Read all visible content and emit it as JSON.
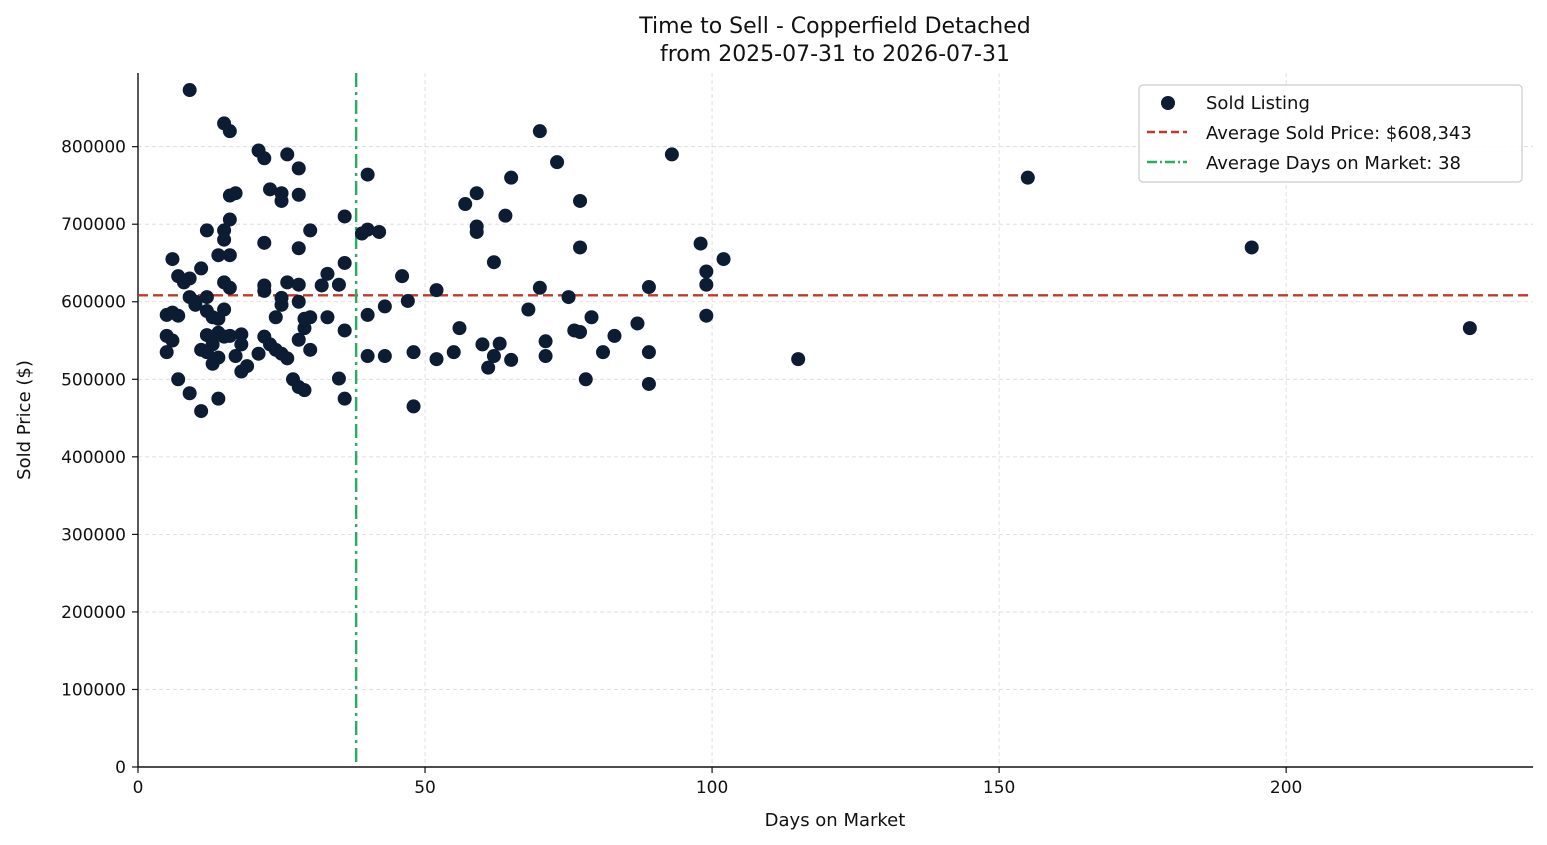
{
  "chart_data": {
    "type": "scatter",
    "title": "Time to Sell - Copperfield Detached",
    "subtitle": "from 2025-07-31 to 2026-07-31",
    "xlabel": "Days on Market",
    "ylabel": "Sold Price ($)",
    "xlim": [
      0,
      243
    ],
    "ylim": [
      0,
      895000
    ],
    "x_ticks": [
      0,
      50,
      100,
      150,
      200
    ],
    "y_ticks": [
      0,
      100000,
      200000,
      300000,
      400000,
      500000,
      600000,
      700000,
      800000
    ],
    "grid": true,
    "legend_position": "top-right",
    "colors": {
      "points": "#0b1c33",
      "avg_price": "#c0392b",
      "avg_days": "#27ae60"
    },
    "legend": [
      {
        "label": "Sold Listing",
        "kind": "marker",
        "color": "#0b1c33"
      },
      {
        "label": "Average Sold Price: $608,343",
        "kind": "dashed-line",
        "color": "#c0392b"
      },
      {
        "label": "Average Days on Market: 38",
        "kind": "dashdot-line",
        "color": "#27ae60"
      }
    ],
    "reference_lines": {
      "average_sold_price": 608343,
      "average_days_on_market": 38
    },
    "series": [
      {
        "name": "Sold Listing",
        "points": [
          [
            9,
            873000
          ],
          [
            15,
            830000
          ],
          [
            16,
            820000
          ],
          [
            21,
            795000
          ],
          [
            22,
            785000
          ],
          [
            26,
            790000
          ],
          [
            28,
            772000
          ],
          [
            23,
            745000
          ],
          [
            25,
            740000
          ],
          [
            25,
            730000
          ],
          [
            28,
            738000
          ],
          [
            16,
            737000
          ],
          [
            17,
            740000
          ],
          [
            16,
            706000
          ],
          [
            12,
            692000
          ],
          [
            15,
            692000
          ],
          [
            15,
            680000
          ],
          [
            14,
            660000
          ],
          [
            16,
            660000
          ],
          [
            22,
            676000
          ],
          [
            30,
            692000
          ],
          [
            28,
            669000
          ],
          [
            6,
            655000
          ],
          [
            7,
            633000
          ],
          [
            9,
            630000
          ],
          [
            8,
            625000
          ],
          [
            11,
            643000
          ],
          [
            15,
            625000
          ],
          [
            16,
            618000
          ],
          [
            22,
            621000
          ],
          [
            22,
            614000
          ],
          [
            26,
            625000
          ],
          [
            28,
            622000
          ],
          [
            28,
            600000
          ],
          [
            25,
            605000
          ],
          [
            25,
            596000
          ],
          [
            9,
            606000
          ],
          [
            10,
            600000
          ],
          [
            10,
            596000
          ],
          [
            12,
            606000
          ],
          [
            12,
            588000
          ],
          [
            13,
            580000
          ],
          [
            14,
            578000
          ],
          [
            15,
            590000
          ],
          [
            5,
            583000
          ],
          [
            6,
            586000
          ],
          [
            7,
            582000
          ],
          [
            5,
            556000
          ],
          [
            6,
            550000
          ],
          [
            12,
            557000
          ],
          [
            13,
            545000
          ],
          [
            11,
            538000
          ],
          [
            12,
            535000
          ],
          [
            13,
            520000
          ],
          [
            14,
            528000
          ],
          [
            14,
            560000
          ],
          [
            15,
            555000
          ],
          [
            16,
            556000
          ],
          [
            17,
            530000
          ],
          [
            18,
            558000
          ],
          [
            18,
            545000
          ],
          [
            5,
            535000
          ],
          [
            7,
            500000
          ],
          [
            9,
            482000
          ],
          [
            11,
            459000
          ],
          [
            14,
            475000
          ],
          [
            18,
            510000
          ],
          [
            19,
            517000
          ],
          [
            21,
            533000
          ],
          [
            22,
            555000
          ],
          [
            23,
            545000
          ],
          [
            24,
            538000
          ],
          [
            24,
            580000
          ],
          [
            25,
            533000
          ],
          [
            26,
            527000
          ],
          [
            27,
            500000
          ],
          [
            28,
            490000
          ],
          [
            29,
            486000
          ],
          [
            28,
            551000
          ],
          [
            29,
            566000
          ],
          [
            29,
            578000
          ],
          [
            30,
            580000
          ],
          [
            30,
            538000
          ],
          [
            32,
            621000
          ],
          [
            33,
            636000
          ],
          [
            33,
            580000
          ],
          [
            35,
            622000
          ],
          [
            36,
            650000
          ],
          [
            36,
            710000
          ],
          [
            36,
            563000
          ],
          [
            35,
            501000
          ],
          [
            36,
            475000
          ],
          [
            39,
            688000
          ],
          [
            40,
            693000
          ],
          [
            42,
            690000
          ],
          [
            40,
            764000
          ],
          [
            40,
            583000
          ],
          [
            40,
            530000
          ],
          [
            43,
            594000
          ],
          [
            43,
            530000
          ],
          [
            46,
            633000
          ],
          [
            47,
            601000
          ],
          [
            48,
            535000
          ],
          [
            48,
            465000
          ],
          [
            52,
            615000
          ],
          [
            52,
            526000
          ],
          [
            55,
            535000
          ],
          [
            56,
            566000
          ],
          [
            57,
            726000
          ],
          [
            59,
            740000
          ],
          [
            59,
            697000
          ],
          [
            59,
            690000
          ],
          [
            60,
            545000
          ],
          [
            61,
            515000
          ],
          [
            62,
            530000
          ],
          [
            62,
            651000
          ],
          [
            63,
            546000
          ],
          [
            64,
            711000
          ],
          [
            65,
            760000
          ],
          [
            65,
            525000
          ],
          [
            68,
            590000
          ],
          [
            70,
            820000
          ],
          [
            70,
            618000
          ],
          [
            71,
            549000
          ],
          [
            71,
            530000
          ],
          [
            73,
            780000
          ],
          [
            75,
            606000
          ],
          [
            76,
            563000
          ],
          [
            77,
            730000
          ],
          [
            77,
            670000
          ],
          [
            77,
            561000
          ],
          [
            78,
            500000
          ],
          [
            79,
            580000
          ],
          [
            81,
            535000
          ],
          [
            83,
            556000
          ],
          [
            87,
            572000
          ],
          [
            89,
            619000
          ],
          [
            89,
            535000
          ],
          [
            89,
            494000
          ],
          [
            93,
            790000
          ],
          [
            98,
            675000
          ],
          [
            99,
            639000
          ],
          [
            99,
            622000
          ],
          [
            99,
            582000
          ],
          [
            102,
            655000
          ],
          [
            115,
            526000
          ],
          [
            155,
            760000
          ],
          [
            194,
            670000
          ],
          [
            232,
            566000
          ]
        ]
      }
    ]
  }
}
